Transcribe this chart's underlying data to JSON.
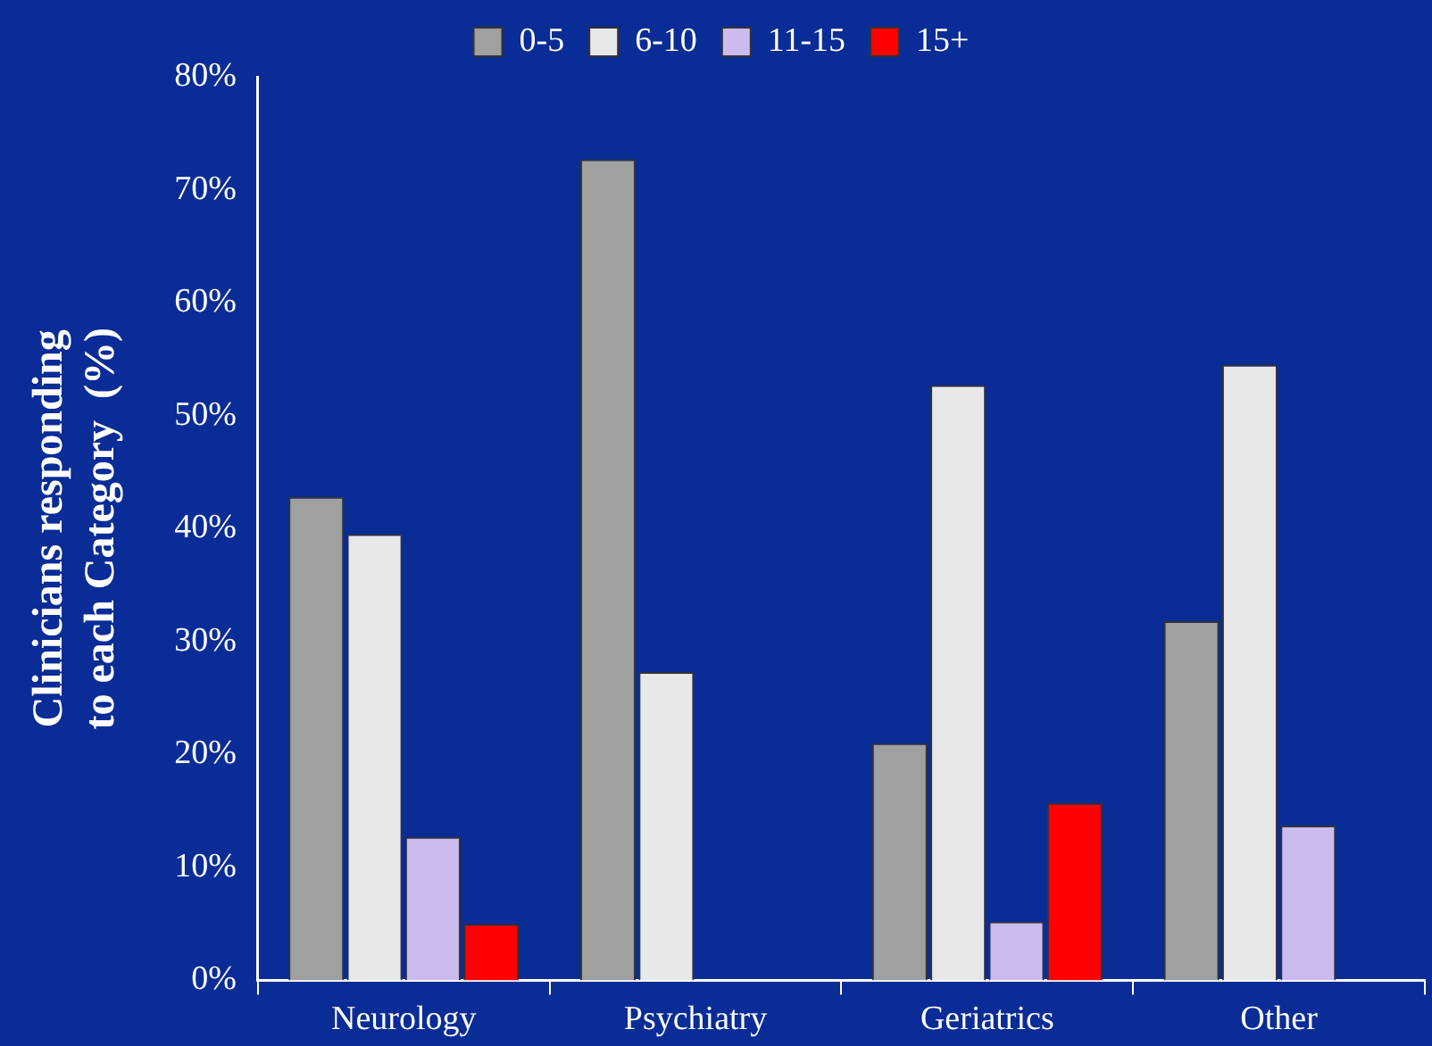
{
  "chart_data": {
    "type": "bar",
    "ylabel": "Clinicians responding to each Category  (%)",
    "categories": [
      "Neurology",
      "Psychiatry",
      "Geriatrics",
      "Other"
    ],
    "series": [
      {
        "name": "0-5",
        "color": "#a0a0a0",
        "values": [
          42.8,
          72.7,
          21.0,
          31.8
        ]
      },
      {
        "name": "6-10",
        "color": "#e8e8e8",
        "values": [
          39.5,
          27.3,
          52.7,
          54.5
        ]
      },
      {
        "name": "11-15",
        "color": "#ccbbee",
        "values": [
          12.7,
          null,
          5.2,
          13.7
        ]
      },
      {
        "name": "15+",
        "color": "#ff0000",
        "values": [
          5.0,
          null,
          15.7,
          null
        ]
      }
    ],
    "ylim": [
      0,
      80
    ],
    "yticks": [
      {
        "value": 0,
        "label": "0%"
      },
      {
        "value": 10,
        "label": "10%"
      },
      {
        "value": 20,
        "label": "20%"
      },
      {
        "value": 30,
        "label": "30%"
      },
      {
        "value": 40,
        "label": "40%"
      },
      {
        "value": 50,
        "label": "50%"
      },
      {
        "value": 60,
        "label": "60%"
      },
      {
        "value": 70,
        "label": "70%"
      },
      {
        "value": 80,
        "label": "80%"
      }
    ],
    "legend": "top"
  }
}
